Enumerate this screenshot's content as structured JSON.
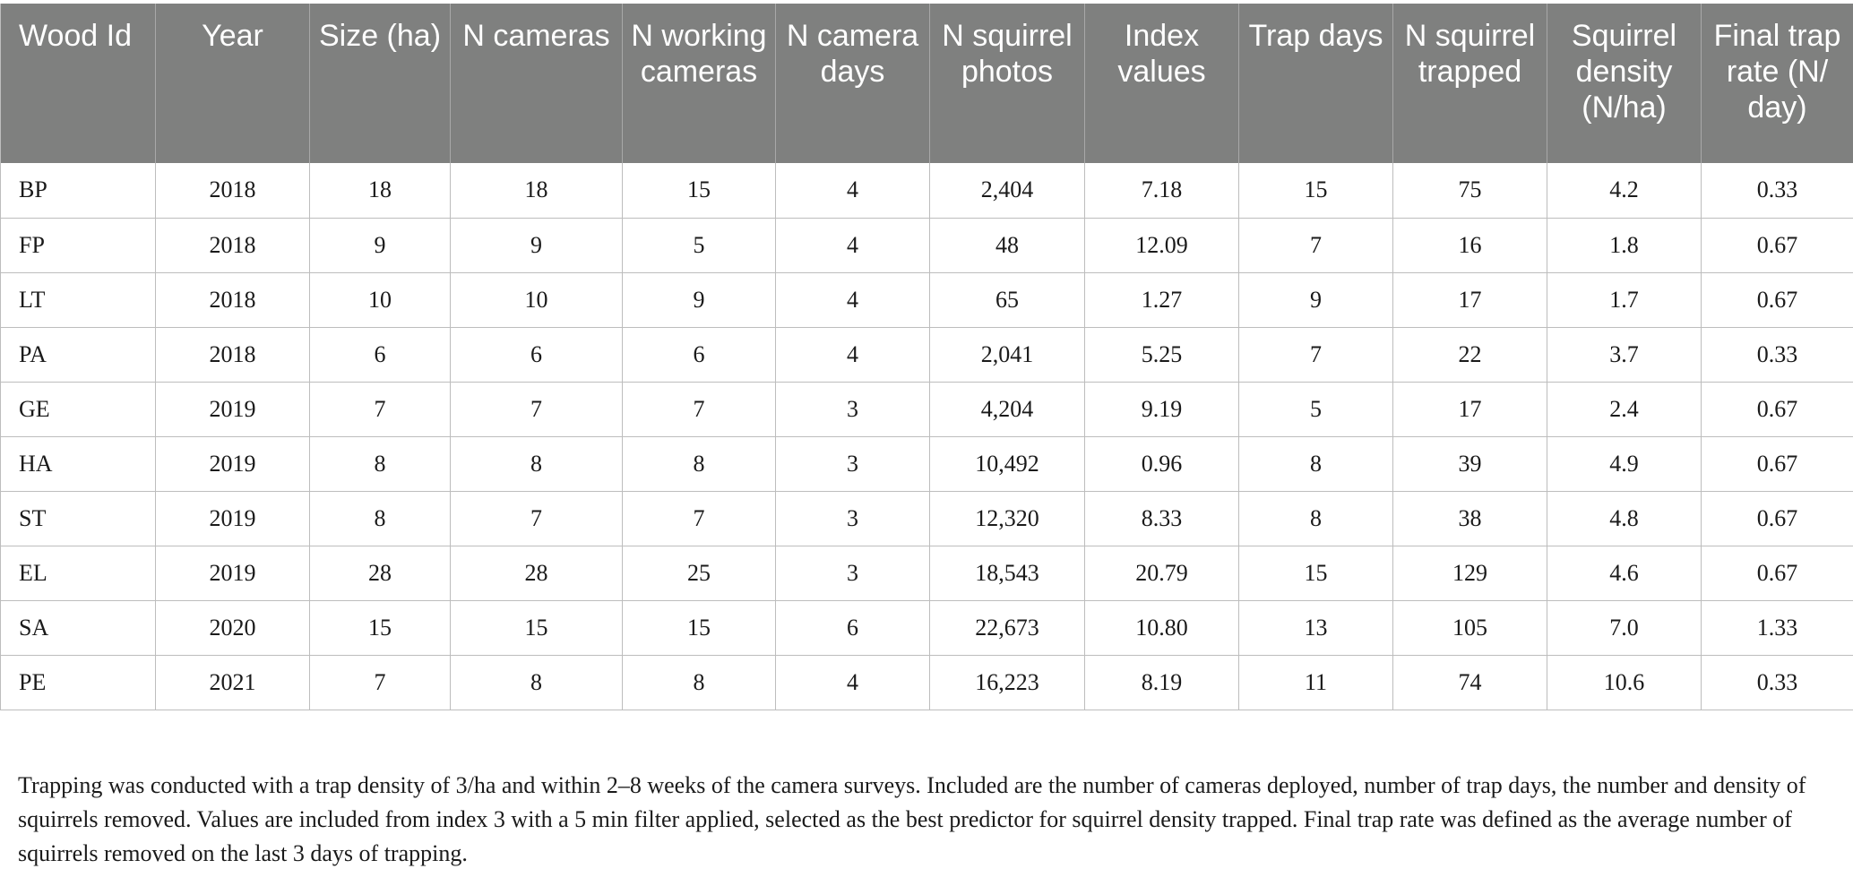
{
  "table": {
    "columns": [
      "Wood Id",
      "Year",
      "Size (ha)",
      "N cameras",
      "N working cameras",
      "N camera days",
      "N squirrel photos",
      "Index values",
      "Trap days",
      "N squirrel trapped",
      "Squirrel density (N/ha)",
      "Final trap rate (N/ day)"
    ],
    "rows": [
      [
        "BP",
        "2018",
        "18",
        "18",
        "15",
        "4",
        "2,404",
        "7.18",
        "15",
        "75",
        "4.2",
        "0.33"
      ],
      [
        "FP",
        "2018",
        "9",
        "9",
        "5",
        "4",
        "48",
        "12.09",
        "7",
        "16",
        "1.8",
        "0.67"
      ],
      [
        "LT",
        "2018",
        "10",
        "10",
        "9",
        "4",
        "65",
        "1.27",
        "9",
        "17",
        "1.7",
        "0.67"
      ],
      [
        "PA",
        "2018",
        "6",
        "6",
        "6",
        "4",
        "2,041",
        "5.25",
        "7",
        "22",
        "3.7",
        "0.33"
      ],
      [
        "GE",
        "2019",
        "7",
        "7",
        "7",
        "3",
        "4,204",
        "9.19",
        "5",
        "17",
        "2.4",
        "0.67"
      ],
      [
        "HA",
        "2019",
        "8",
        "8",
        "8",
        "3",
        "10,492",
        "0.96",
        "8",
        "39",
        "4.9",
        "0.67"
      ],
      [
        "ST",
        "2019",
        "8",
        "7",
        "7",
        "3",
        "12,320",
        "8.33",
        "8",
        "38",
        "4.8",
        "0.67"
      ],
      [
        "EL",
        "2019",
        "28",
        "28",
        "25",
        "3",
        "18,543",
        "20.79",
        "15",
        "129",
        "4.6",
        "0.67"
      ],
      [
        "SA",
        "2020",
        "15",
        "15",
        "15",
        "6",
        "22,673",
        "10.80",
        "13",
        "105",
        "7.0",
        "1.33"
      ],
      [
        "PE",
        "2021",
        "7",
        "8",
        "8",
        "4",
        "16,223",
        "8.19",
        "11",
        "74",
        "10.6",
        "0.33"
      ]
    ]
  },
  "footnote": "Trapping was conducted with a trap density of 3/ha and within 2–8 weeks of the camera surveys. Included are the number of cameras deployed, number of trap days, the number and density of squirrels removed. Values are included from index 3 with a 5 min filter applied, selected as the best predictor for squirrel density trapped. Final trap rate was defined as the average number of squirrels removed on the last 3 days of trapping.",
  "colors": {
    "header_bg": "#7f807f",
    "header_text": "#ffffff",
    "grid": "#bdbdbd"
  }
}
